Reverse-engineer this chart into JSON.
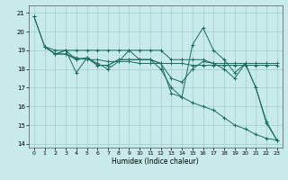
{
  "title": "",
  "xlabel": "Humidex (Indice chaleur)",
  "background_color": "#c8eaea",
  "grid_color": "#a0cccc",
  "line_color": "#1a6b5e",
  "xlim": [
    -0.5,
    23.5
  ],
  "ylim": [
    13.8,
    21.4
  ],
  "yticks": [
    14,
    15,
    16,
    17,
    18,
    19,
    20,
    21
  ],
  "xticks": [
    0,
    1,
    2,
    3,
    4,
    5,
    6,
    7,
    8,
    9,
    10,
    11,
    12,
    13,
    14,
    15,
    16,
    17,
    18,
    19,
    20,
    21,
    22,
    23
  ],
  "lines": [
    {
      "x": [
        0,
        1,
        2,
        3,
        4,
        5,
        6,
        7,
        8,
        9,
        10,
        11,
        12,
        13,
        14,
        15,
        16,
        17,
        18,
        19,
        20,
        21,
        22,
        23
      ],
      "y": [
        20.8,
        19.2,
        19.0,
        19.0,
        19.0,
        19.0,
        19.0,
        19.0,
        19.0,
        19.0,
        19.0,
        19.0,
        19.0,
        18.5,
        18.5,
        18.5,
        18.5,
        18.3,
        18.3,
        18.3,
        18.3,
        18.3,
        18.3,
        18.3
      ]
    },
    {
      "x": [
        1,
        2,
        3,
        4,
        5,
        6,
        7,
        8,
        9,
        10,
        11,
        12,
        13,
        14,
        15,
        16,
        17,
        18,
        19,
        20,
        21,
        22,
        23
      ],
      "y": [
        19.2,
        18.8,
        18.8,
        18.6,
        18.5,
        18.5,
        18.4,
        18.4,
        18.4,
        18.3,
        18.3,
        18.3,
        18.3,
        18.3,
        18.2,
        18.2,
        18.2,
        18.2,
        18.2,
        18.2,
        18.2,
        18.2,
        18.2
      ]
    },
    {
      "x": [
        1,
        2,
        3,
        4,
        5,
        6,
        7,
        8,
        9,
        10,
        11,
        12,
        13,
        14,
        15,
        16,
        17,
        18,
        19,
        20,
        21,
        22,
        23
      ],
      "y": [
        19.2,
        18.8,
        19.0,
        17.8,
        18.6,
        18.3,
        18.0,
        18.4,
        19.0,
        18.5,
        18.5,
        18.3,
        16.7,
        16.5,
        19.3,
        20.2,
        19.0,
        18.5,
        17.8,
        18.3,
        17.0,
        15.1,
        14.2
      ]
    },
    {
      "x": [
        1,
        2,
        3,
        4,
        5,
        6,
        7,
        8,
        9,
        10,
        11,
        12,
        13,
        14,
        15,
        16,
        17,
        18,
        19,
        20,
        21,
        22,
        23
      ],
      "y": [
        19.2,
        18.8,
        19.0,
        18.5,
        18.6,
        18.2,
        18.2,
        18.5,
        18.5,
        18.5,
        18.5,
        18.3,
        17.5,
        17.3,
        18.0,
        18.4,
        18.3,
        18.0,
        17.5,
        18.3,
        17.0,
        15.2,
        14.2
      ]
    },
    {
      "x": [
        0,
        1,
        2,
        3,
        4,
        5,
        6,
        7,
        8,
        9,
        10,
        11,
        12,
        13,
        14,
        15,
        16,
        17,
        18,
        19,
        20,
        21,
        22,
        23
      ],
      "y": [
        20.8,
        19.2,
        18.8,
        18.8,
        18.5,
        18.6,
        18.2,
        18.2,
        18.5,
        18.5,
        18.5,
        18.5,
        18.0,
        17.0,
        16.5,
        16.2,
        16.0,
        15.8,
        15.4,
        15.0,
        14.8,
        14.5,
        14.3,
        14.2
      ]
    }
  ]
}
